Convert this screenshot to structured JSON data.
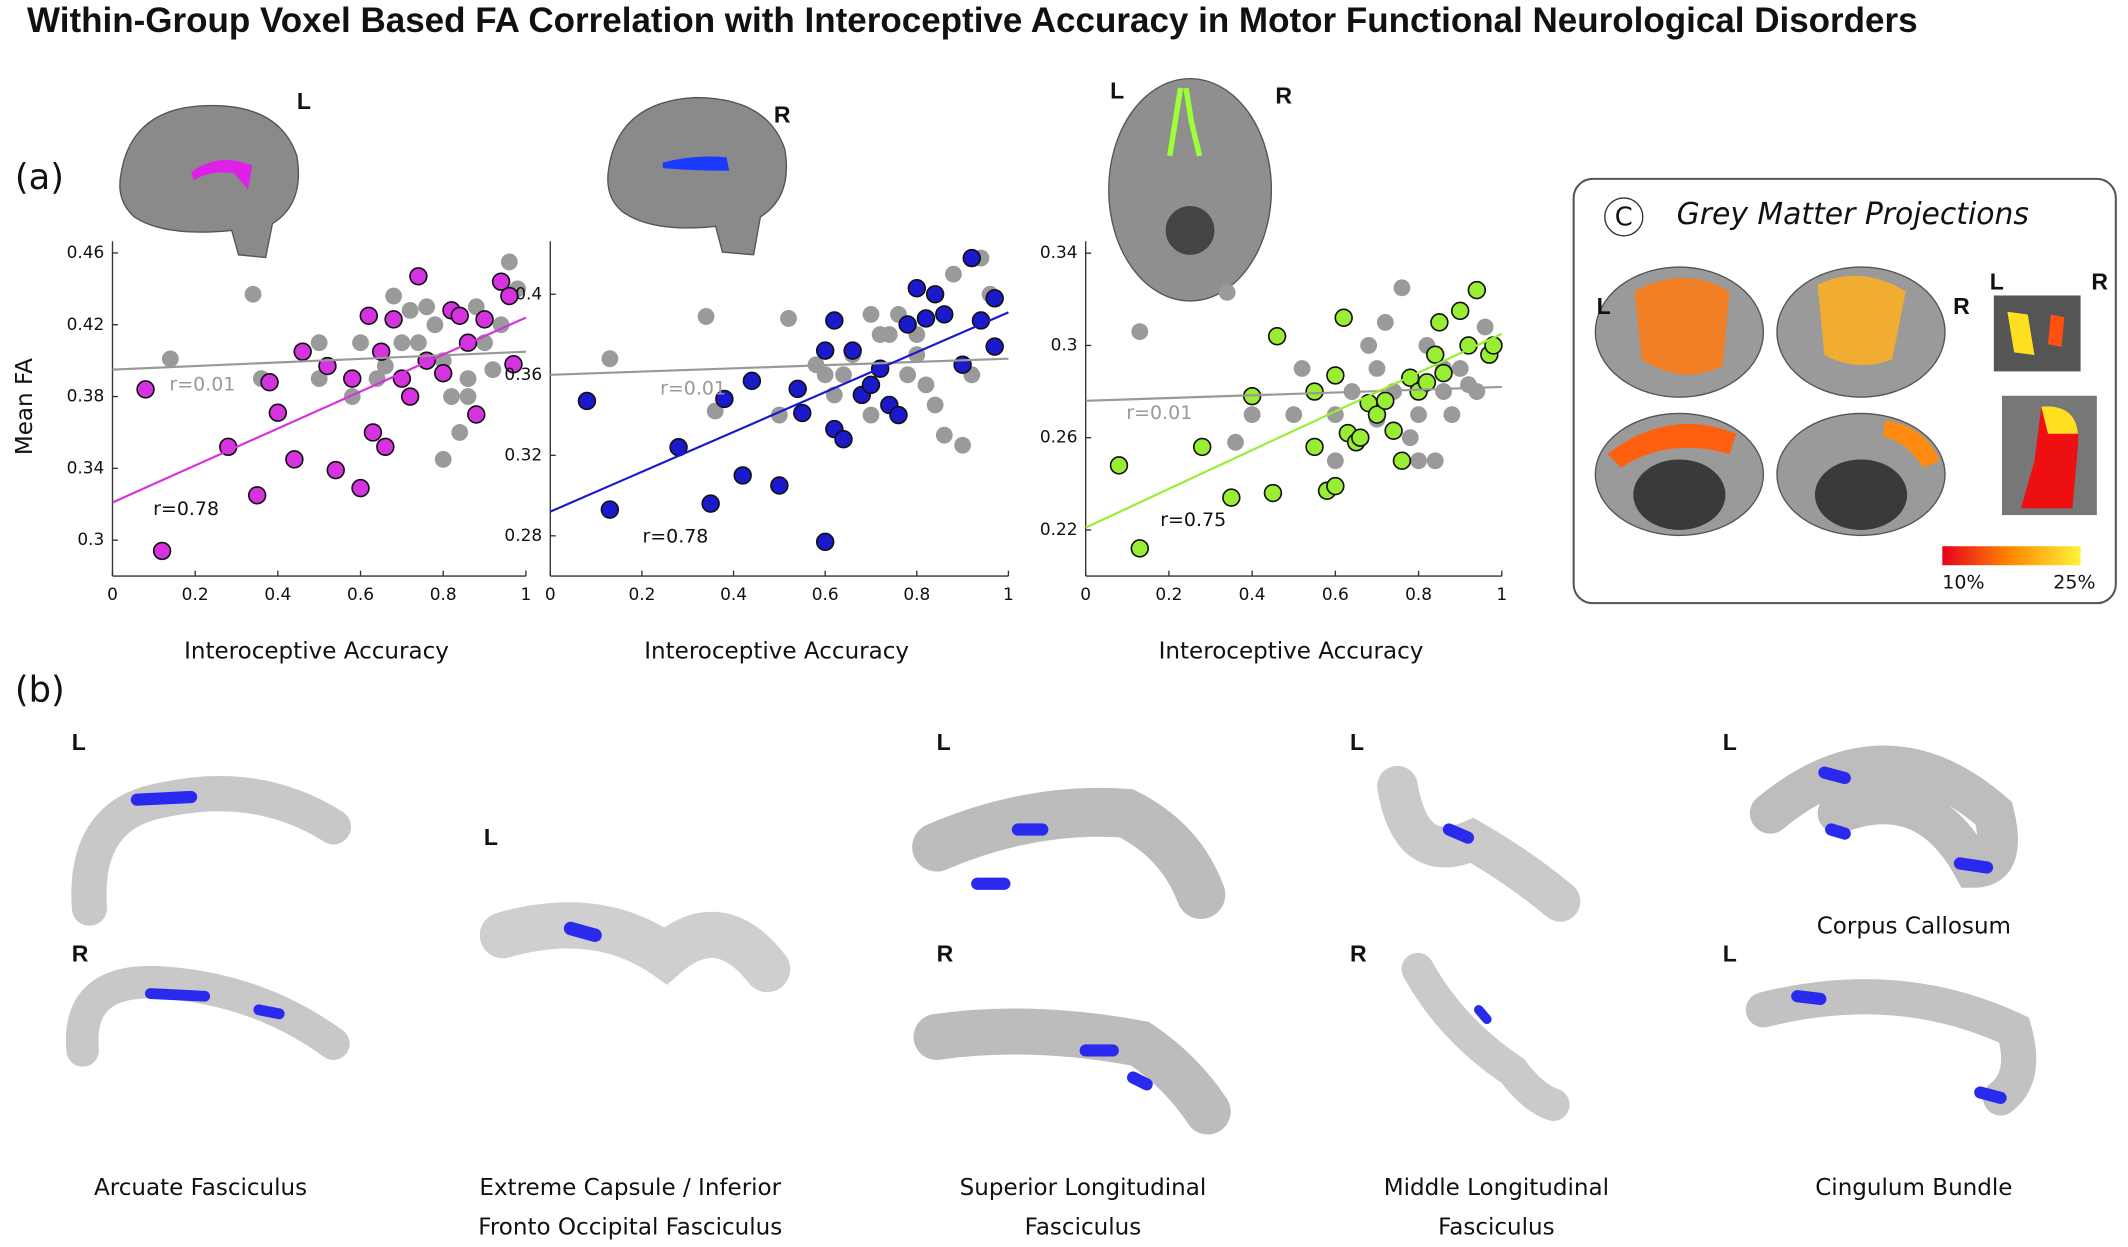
{
  "title": "Within-Group Voxel Based FA Correlation with Interoceptive Accuracy in Motor Functional Neurological Disorders",
  "panel_a_label": "(a)",
  "panel_b_label": "(b)",
  "brain_orientation_labels": [
    "L",
    "R",
    "L",
    "R"
  ],
  "grey_matter": {
    "badge": "C",
    "title": "Grey Matter Projections",
    "hemisphere_labels": [
      "L",
      "R",
      "L",
      "R"
    ],
    "colorbar_min": "10%",
    "colorbar_max": "25%"
  },
  "tracts": [
    {
      "name_lines": [
        "Arcuate Fasciculus"
      ],
      "views": [
        "L",
        "R"
      ]
    },
    {
      "name_lines": [
        "Extreme Capsule / Inferior",
        "Fronto Occipital Fasciculus"
      ],
      "views": [
        "L"
      ]
    },
    {
      "name_lines": [
        "Superior Longitudinal",
        "Fasciculus"
      ],
      "views": [
        "L",
        "R"
      ]
    },
    {
      "name_lines": [
        "Middle Longitudinal",
        "Fasciculus"
      ],
      "views": [
        "L",
        "R"
      ]
    },
    {
      "name_lines": [
        "Corpus Callosum"
      ],
      "views": [
        "L"
      ]
    },
    {
      "name_lines": [
        "Cingulum Bundle"
      ],
      "views": [
        "L"
      ]
    }
  ],
  "chart_data": [
    {
      "type": "scatter",
      "ylabel": "Mean FA",
      "xlabel": "Interoceptive Accuracy",
      "xlim": [
        0,
        1
      ],
      "ylim": [
        0.28,
        0.465
      ],
      "xticks": [
        0,
        0.2,
        0.4,
        0.6,
        0.8,
        1
      ],
      "yticks": [
        0.3,
        0.34,
        0.38,
        0.42,
        0.46
      ],
      "series": [
        {
          "color": "#9a9a9a",
          "x": [
            0.14,
            0.34,
            0.36,
            0.5,
            0.6,
            0.64,
            0.66,
            0.7,
            0.72,
            0.74,
            0.76,
            0.78,
            0.8,
            0.82,
            0.84,
            0.86,
            0.88,
            0.9,
            0.92,
            0.94,
            0.96,
            0.98,
            0.5,
            0.68,
            0.8,
            0.86,
            0.58
          ],
          "values": [
            0.401,
            0.437,
            0.39,
            0.39,
            0.41,
            0.39,
            0.397,
            0.41,
            0.428,
            0.41,
            0.43,
            0.42,
            0.4,
            0.38,
            0.36,
            0.39,
            0.43,
            0.41,
            0.395,
            0.42,
            0.455,
            0.44,
            0.41,
            0.436,
            0.345,
            0.38,
            0.38
          ]
        },
        {
          "color": "#d633e0",
          "x": [
            0.08,
            0.12,
            0.28,
            0.35,
            0.38,
            0.4,
            0.44,
            0.46,
            0.52,
            0.54,
            0.58,
            0.6,
            0.62,
            0.63,
            0.65,
            0.66,
            0.68,
            0.7,
            0.72,
            0.74,
            0.76,
            0.8,
            0.82,
            0.84,
            0.88,
            0.9,
            0.94,
            0.96,
            0.97,
            0.86
          ],
          "values": [
            0.384,
            0.294,
            0.352,
            0.325,
            0.388,
            0.371,
            0.345,
            0.405,
            0.397,
            0.339,
            0.39,
            0.329,
            0.425,
            0.36,
            0.405,
            0.352,
            0.423,
            0.39,
            0.38,
            0.447,
            0.4,
            0.393,
            0.428,
            0.425,
            0.37,
            0.423,
            0.444,
            0.436,
            0.398,
            0.41
          ]
        }
      ],
      "fit_lines": [
        {
          "color": "#999999",
          "x": [
            0,
            1
          ],
          "values": [
            0.395,
            0.405
          ],
          "annotation": "r=0.01"
        },
        {
          "color": "#d633e0",
          "x": [
            0,
            1
          ],
          "values": [
            0.321,
            0.424
          ],
          "annotation": "r=0.78"
        }
      ]
    },
    {
      "type": "scatter",
      "xlabel": "Interoceptive Accuracy",
      "xlim": [
        0,
        1
      ],
      "ylim": [
        0.26,
        0.425
      ],
      "xticks": [
        0,
        0.2,
        0.4,
        0.6,
        0.8,
        1
      ],
      "yticks": [
        0.28,
        0.32,
        0.36,
        0.4
      ],
      "series": [
        {
          "color": "#9a9a9a",
          "x": [
            0.13,
            0.34,
            0.36,
            0.5,
            0.52,
            0.58,
            0.6,
            0.64,
            0.66,
            0.68,
            0.7,
            0.72,
            0.74,
            0.76,
            0.78,
            0.8,
            0.82,
            0.84,
            0.86,
            0.88,
            0.9,
            0.92,
            0.94,
            0.96,
            0.62,
            0.7,
            0.8
          ],
          "values": [
            0.368,
            0.389,
            0.342,
            0.34,
            0.388,
            0.365,
            0.36,
            0.36,
            0.37,
            0.35,
            0.39,
            0.38,
            0.38,
            0.39,
            0.36,
            0.37,
            0.355,
            0.345,
            0.33,
            0.41,
            0.325,
            0.36,
            0.418,
            0.4,
            0.35,
            0.34,
            0.38
          ]
        },
        {
          "color": "#1a1acc",
          "x": [
            0.08,
            0.13,
            0.28,
            0.35,
            0.38,
            0.42,
            0.44,
            0.5,
            0.54,
            0.55,
            0.6,
            0.6,
            0.62,
            0.62,
            0.64,
            0.66,
            0.68,
            0.7,
            0.72,
            0.74,
            0.76,
            0.78,
            0.8,
            0.82,
            0.84,
            0.86,
            0.9,
            0.92,
            0.94,
            0.97,
            0.97
          ],
          "values": [
            0.347,
            0.293,
            0.324,
            0.296,
            0.348,
            0.31,
            0.357,
            0.305,
            0.353,
            0.341,
            0.277,
            0.372,
            0.387,
            0.333,
            0.328,
            0.372,
            0.35,
            0.355,
            0.363,
            0.345,
            0.34,
            0.385,
            0.403,
            0.388,
            0.4,
            0.39,
            0.365,
            0.418,
            0.387,
            0.398,
            0.374
          ]
        }
      ],
      "fit_lines": [
        {
          "color": "#999999",
          "x": [
            0,
            1
          ],
          "values": [
            0.36,
            0.368
          ],
          "annotation": "r=0.01"
        },
        {
          "color": "#1a1acc",
          "x": [
            0,
            1
          ],
          "values": [
            0.292,
            0.391
          ],
          "annotation": "r=0.78"
        }
      ]
    },
    {
      "type": "scatter",
      "xlabel": "Interoceptive Accuracy",
      "xlim": [
        0,
        1
      ],
      "ylim": [
        0.2,
        0.344
      ],
      "xticks": [
        0,
        0.2,
        0.4,
        0.6,
        0.8,
        1
      ],
      "yticks": [
        0.22,
        0.26,
        0.3,
        0.34
      ],
      "series": [
        {
          "color": "#9a9a9a",
          "x": [
            0.13,
            0.34,
            0.36,
            0.4,
            0.5,
            0.52,
            0.6,
            0.64,
            0.68,
            0.7,
            0.72,
            0.74,
            0.76,
            0.78,
            0.8,
            0.82,
            0.84,
            0.86,
            0.88,
            0.9,
            0.92,
            0.94,
            0.96,
            0.6,
            0.7,
            0.8,
            0.86
          ],
          "values": [
            0.306,
            0.323,
            0.258,
            0.27,
            0.27,
            0.29,
            0.25,
            0.28,
            0.3,
            0.29,
            0.31,
            0.28,
            0.325,
            0.26,
            0.27,
            0.3,
            0.25,
            0.28,
            0.27,
            0.29,
            0.283,
            0.28,
            0.308,
            0.27,
            0.268,
            0.25,
            0.29
          ]
        },
        {
          "color": "#99ee33",
          "x": [
            0.08,
            0.13,
            0.28,
            0.35,
            0.4,
            0.45,
            0.46,
            0.55,
            0.55,
            0.58,
            0.6,
            0.6,
            0.62,
            0.63,
            0.65,
            0.66,
            0.68,
            0.7,
            0.72,
            0.74,
            0.76,
            0.78,
            0.8,
            0.82,
            0.84,
            0.85,
            0.86,
            0.9,
            0.92,
            0.94,
            0.97,
            0.98
          ],
          "values": [
            0.248,
            0.212,
            0.256,
            0.234,
            0.278,
            0.236,
            0.304,
            0.256,
            0.28,
            0.237,
            0.239,
            0.287,
            0.312,
            0.262,
            0.258,
            0.26,
            0.275,
            0.27,
            0.276,
            0.263,
            0.25,
            0.286,
            0.28,
            0.284,
            0.296,
            0.31,
            0.288,
            0.315,
            0.3,
            0.324,
            0.296,
            0.3
          ]
        }
      ],
      "fit_lines": [
        {
          "color": "#999999",
          "x": [
            0,
            1
          ],
          "values": [
            0.276,
            0.282
          ],
          "annotation": "r=0.01"
        },
        {
          "color": "#99ee33",
          "x": [
            0,
            1
          ],
          "values": [
            0.221,
            0.305
          ],
          "annotation": "r=0.75"
        }
      ]
    }
  ]
}
